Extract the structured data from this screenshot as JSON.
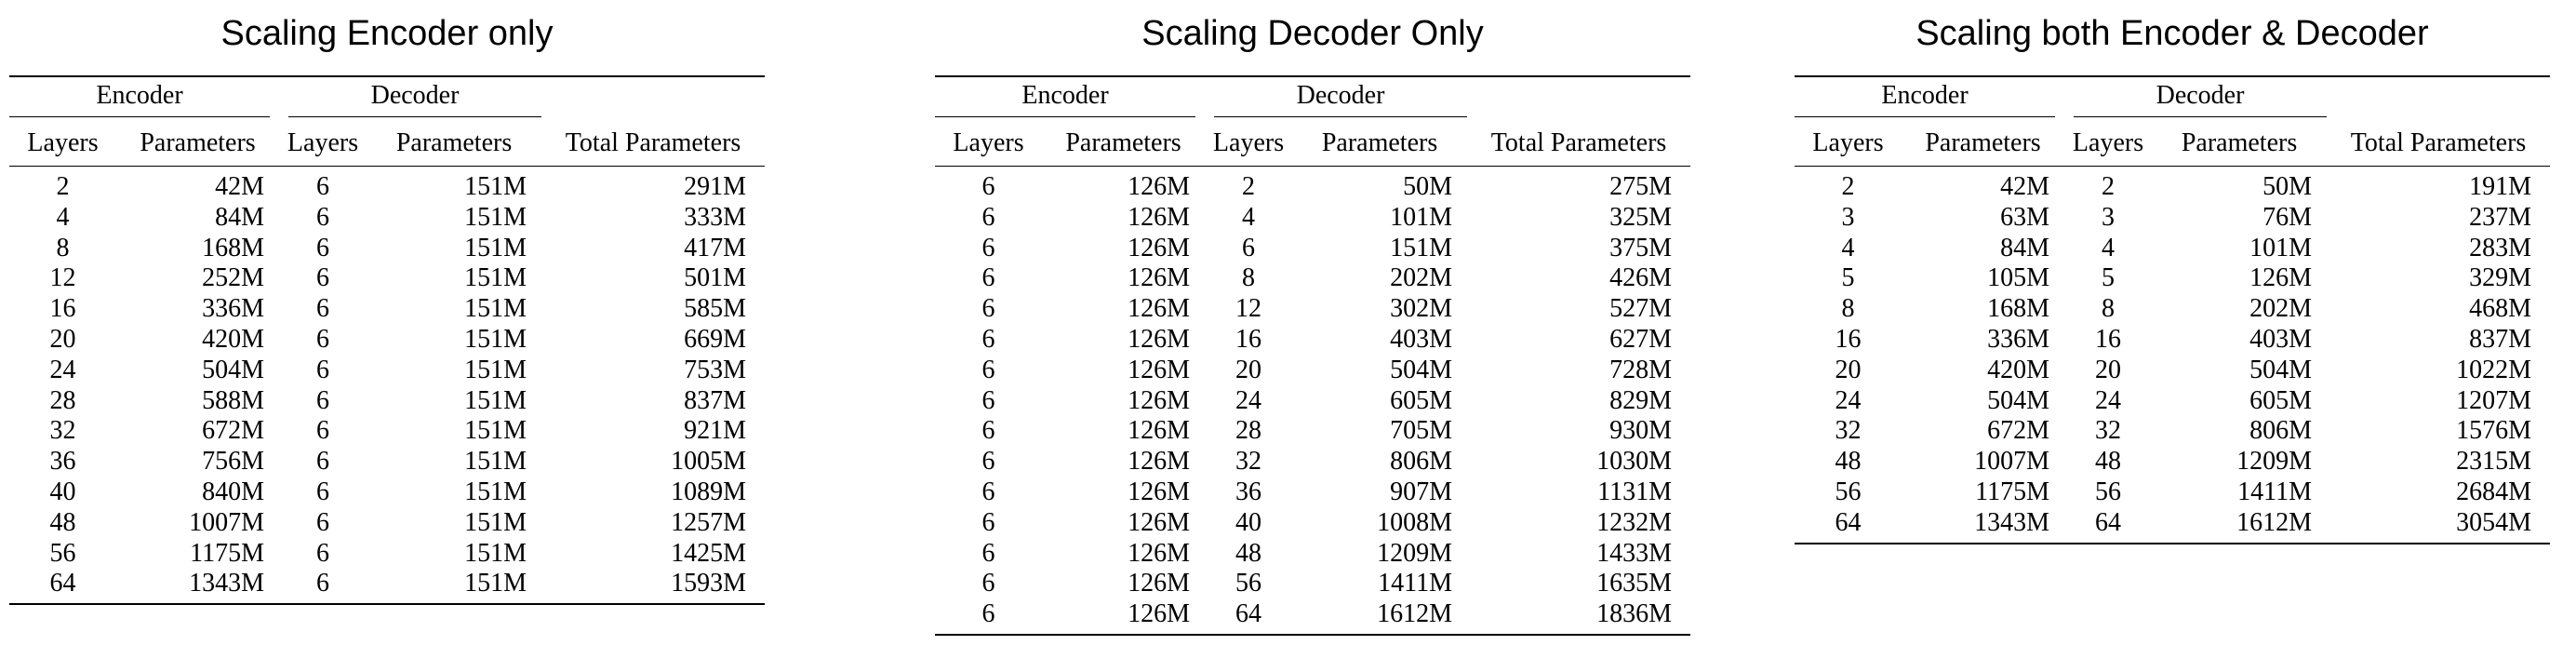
{
  "tables": [
    {
      "title": "Scaling Encoder only",
      "group_headers": {
        "encoder": "Encoder",
        "decoder": "Decoder"
      },
      "columns": [
        "Layers",
        "Parameters",
        "Layers",
        "Parameters",
        "Total Parameters"
      ],
      "rows": [
        [
          "2",
          "42M",
          "6",
          "151M",
          "291M"
        ],
        [
          "4",
          "84M",
          "6",
          "151M",
          "333M"
        ],
        [
          "8",
          "168M",
          "6",
          "151M",
          "417M"
        ],
        [
          "12",
          "252M",
          "6",
          "151M",
          "501M"
        ],
        [
          "16",
          "336M",
          "6",
          "151M",
          "585M"
        ],
        [
          "20",
          "420M",
          "6",
          "151M",
          "669M"
        ],
        [
          "24",
          "504M",
          "6",
          "151M",
          "753M"
        ],
        [
          "28",
          "588M",
          "6",
          "151M",
          "837M"
        ],
        [
          "32",
          "672M",
          "6",
          "151M",
          "921M"
        ],
        [
          "36",
          "756M",
          "6",
          "151M",
          "1005M"
        ],
        [
          "40",
          "840M",
          "6",
          "151M",
          "1089M"
        ],
        [
          "48",
          "1007M",
          "6",
          "151M",
          "1257M"
        ],
        [
          "56",
          "1175M",
          "6",
          "151M",
          "1425M"
        ],
        [
          "64",
          "1343M",
          "6",
          "151M",
          "1593M"
        ]
      ]
    },
    {
      "title": "Scaling Decoder Only",
      "group_headers": {
        "encoder": "Encoder",
        "decoder": "Decoder"
      },
      "columns": [
        "Layers",
        "Parameters",
        "Layers",
        "Parameters",
        "Total Parameters"
      ],
      "rows": [
        [
          "6",
          "126M",
          "2",
          "50M",
          "275M"
        ],
        [
          "6",
          "126M",
          "4",
          "101M",
          "325M"
        ],
        [
          "6",
          "126M",
          "6",
          "151M",
          "375M"
        ],
        [
          "6",
          "126M",
          "8",
          "202M",
          "426M"
        ],
        [
          "6",
          "126M",
          "12",
          "302M",
          "527M"
        ],
        [
          "6",
          "126M",
          "16",
          "403M",
          "627M"
        ],
        [
          "6",
          "126M",
          "20",
          "504M",
          "728M"
        ],
        [
          "6",
          "126M",
          "24",
          "605M",
          "829M"
        ],
        [
          "6",
          "126M",
          "28",
          "705M",
          "930M"
        ],
        [
          "6",
          "126M",
          "32",
          "806M",
          "1030M"
        ],
        [
          "6",
          "126M",
          "36",
          "907M",
          "1131M"
        ],
        [
          "6",
          "126M",
          "40",
          "1008M",
          "1232M"
        ],
        [
          "6",
          "126M",
          "48",
          "1209M",
          "1433M"
        ],
        [
          "6",
          "126M",
          "56",
          "1411M",
          "1635M"
        ],
        [
          "6",
          "126M",
          "64",
          "1612M",
          "1836M"
        ]
      ]
    },
    {
      "title": "Scaling both Encoder & Decoder",
      "group_headers": {
        "encoder": "Encoder",
        "decoder": "Decoder"
      },
      "columns": [
        "Layers",
        "Parameters",
        "Layers",
        "Parameters",
        "Total Parameters"
      ],
      "rows": [
        [
          "2",
          "42M",
          "2",
          "50M",
          "191M"
        ],
        [
          "3",
          "63M",
          "3",
          "76M",
          "237M"
        ],
        [
          "4",
          "84M",
          "4",
          "101M",
          "283M"
        ],
        [
          "5",
          "105M",
          "5",
          "126M",
          "329M"
        ],
        [
          "8",
          "168M",
          "8",
          "202M",
          "468M"
        ],
        [
          "16",
          "336M",
          "16",
          "403M",
          "837M"
        ],
        [
          "20",
          "420M",
          "20",
          "504M",
          "1022M"
        ],
        [
          "24",
          "504M",
          "24",
          "605M",
          "1207M"
        ],
        [
          "32",
          "672M",
          "32",
          "806M",
          "1576M"
        ],
        [
          "48",
          "1007M",
          "48",
          "1209M",
          "2315M"
        ],
        [
          "56",
          "1175M",
          "56",
          "1411M",
          "2684M"
        ],
        [
          "64",
          "1343M",
          "64",
          "1612M",
          "3054M"
        ]
      ]
    }
  ]
}
